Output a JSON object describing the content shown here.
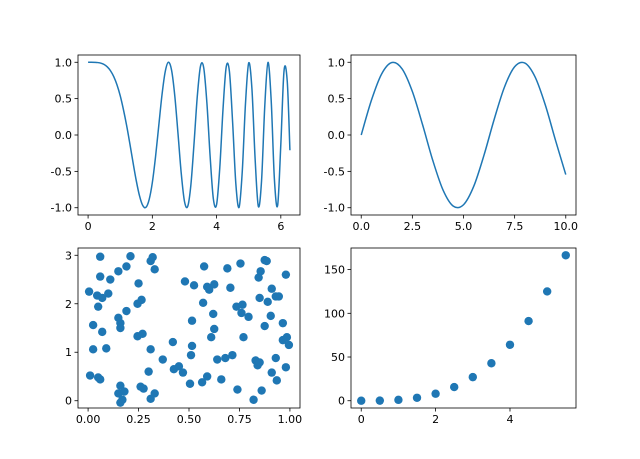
{
  "chart_data": [
    {
      "type": "line",
      "color": "#1f77b4",
      "x": [
        0,
        0.1,
        0.2,
        0.3,
        0.4,
        0.5,
        0.6,
        0.7,
        0.8,
        0.9,
        1.0,
        1.1,
        1.2,
        1.3,
        1.4,
        1.5,
        1.6,
        1.7,
        1.8,
        1.9,
        2.0,
        2.1,
        2.2,
        2.3,
        2.4,
        2.5,
        2.6,
        2.7,
        2.8,
        2.9,
        3.0,
        3.1,
        3.2,
        3.3,
        3.4,
        3.5,
        3.6,
        3.7,
        3.8,
        3.9,
        4.0,
        4.1,
        4.2,
        4.3,
        4.4,
        4.5,
        4.6,
        4.7,
        4.8,
        4.9,
        5.0,
        5.1,
        5.2,
        5.3,
        5.4,
        5.5,
        5.6,
        5.7,
        5.8,
        5.9,
        6.0,
        6.1,
        6.2,
        6.283
      ],
      "values": [
        1,
        1.0,
        0.999,
        0.996,
        0.987,
        0.969,
        0.936,
        0.882,
        0.802,
        0.689,
        0.54,
        0.35,
        0.131,
        -0.119,
        -0.38,
        -0.628,
        -0.835,
        -0.968,
        -0.995,
        -0.889,
        -0.654,
        -0.298,
        0.127,
        0.549,
        0.868,
        1.0,
        0.888,
        0.534,
        0.014,
        -0.527,
        -0.911,
        -0.983,
        -0.686,
        -0.105,
        0.533,
        0.948,
        0.923,
        0.433,
        -0.299,
        -0.879,
        -0.957,
        -0.45,
        0.353,
        0.936,
        0.873,
        0.17,
        -0.673,
        -0.995,
        -0.499,
        0.432,
        0.991,
        0.639,
        -0.33,
        -0.982,
        -0.63,
        0.394,
        0.998,
        0.477,
        -0.608,
        -0.97,
        -0.128,
        0.883,
        0.738,
        -0.21
      ],
      "xlim": [
        -0.314,
        6.597
      ],
      "ylim": [
        -1.1,
        1.1
      ],
      "xticks": [
        0,
        2,
        4,
        6
      ],
      "yticks": [
        {
          "value": -1,
          "label": "-1.0"
        },
        {
          "value": -0.5,
          "label": "-0.5"
        },
        {
          "value": 0,
          "label": "0.0"
        },
        {
          "value": 0.5,
          "label": "0.5"
        },
        {
          "value": 1,
          "label": "1.0"
        }
      ]
    },
    {
      "type": "line",
      "color": "#1f77b4",
      "x": [
        0,
        0.5,
        1,
        1.5,
        2,
        2.5,
        3,
        3.5,
        4,
        4.5,
        5,
        5.5,
        6,
        6.5,
        7,
        7.5,
        8,
        8.5,
        9,
        9.5,
        10
      ],
      "values": [
        0,
        0.479,
        0.841,
        0.997,
        0.909,
        0.598,
        0.141,
        -0.351,
        -0.757,
        -0.978,
        -0.959,
        -0.706,
        -0.279,
        0.215,
        0.657,
        0.938,
        0.989,
        0.798,
        0.412,
        -0.075,
        -0.544
      ],
      "xlim": [
        -0.5,
        10.5
      ],
      "ylim": [
        -1.1,
        1.1
      ],
      "xticks": [
        {
          "value": 0,
          "label": "0.0"
        },
        {
          "value": 2.5,
          "label": "2.5"
        },
        {
          "value": 5,
          "label": "5.0"
        },
        {
          "value": 7.5,
          "label": "7.5"
        },
        {
          "value": 10,
          "label": "10.0"
        }
      ],
      "yticks": [
        {
          "value": -1,
          "label": "-1.0"
        },
        {
          "value": -0.5,
          "label": "-0.5"
        },
        {
          "value": 0,
          "label": "0.0"
        },
        {
          "value": 0.5,
          "label": "0.5"
        },
        {
          "value": 1,
          "label": "1.0"
        }
      ]
    },
    {
      "type": "scatter",
      "color": "#1f77b4",
      "x": [
        0.005,
        0.06,
        0.025,
        0.06,
        0.05,
        0.07,
        0.11,
        0.1,
        0.15,
        0.19,
        0.21,
        0.045,
        0.07,
        0.025,
        0.09,
        0.15,
        0.16,
        0.16,
        0.19,
        0.01,
        0.05,
        0.06,
        0.15,
        0.16,
        0.17,
        0.16,
        0.18,
        0.245,
        0.265,
        0.25,
        0.31,
        0.32,
        0.33,
        0.245,
        0.27,
        0.31,
        0.26,
        0.275,
        0.3,
        0.33,
        0.31,
        0.37,
        0.42,
        0.425,
        0.45,
        0.48,
        0.47,
        0.505,
        0.51,
        0.515,
        0.525,
        0.515,
        0.57,
        0.575,
        0.565,
        0.59,
        0.6,
        0.59,
        0.625,
        0.61,
        0.625,
        0.62,
        0.66,
        0.68,
        0.69,
        0.705,
        0.64,
        0.715,
        0.74,
        0.755,
        0.735,
        0.76,
        0.765,
        0.77,
        0.795,
        0.82,
        0.83,
        0.84,
        0.85,
        0.86,
        0.845,
        0.855,
        0.875,
        0.885,
        0.85,
        0.89,
        0.875,
        0.905,
        0.93,
        0.945,
        0.91,
        0.965,
        0.965,
        0.98,
        0.995,
        0.98,
        0.935,
        0.93,
        0.91,
        0.985
      ],
      "values": [
        2.25,
        2.97,
        1.56,
        2.56,
        1.94,
        2.12,
        2.5,
        2.21,
        2.67,
        2.77,
        2.98,
        2.17,
        1.42,
        1.06,
        1.08,
        1.71,
        1.6,
        1.5,
        1.85,
        0.52,
        0.48,
        0.44,
        0.15,
        0.31,
        0.02,
        -0.04,
        0.19,
        2.0,
        2.08,
        2.42,
        2.88,
        2.96,
        2.71,
        1.33,
        1.38,
        1.06,
        0.29,
        0.25,
        0.6,
        0.15,
        0.04,
        0.85,
        1.21,
        0.65,
        0.71,
        2.46,
        0.58,
        0.35,
        0.94,
        1.13,
        2.38,
        1.65,
        2.02,
        2.77,
        0.38,
        0.5,
        2.29,
        2.35,
        2.4,
        1.31,
        1.48,
        1.79,
        0.44,
        0.88,
        2.73,
        2.33,
        0.85,
        0.94,
        0.23,
        2.83,
        1.94,
        1.81,
        1.98,
        1.31,
        1.73,
        0.02,
        0.83,
        0.73,
        0.79,
        0.21,
        2.54,
        2.67,
        2.9,
        2.88,
        2.12,
        2.04,
        1.54,
        1.75,
        2.15,
        2.15,
        2.31,
        1.6,
        1.25,
        2.6,
        1.15,
        0.69,
        0.42,
        0.88,
        0.58,
        1.31
      ],
      "xlim": [
        -0.05,
        1.05
      ],
      "ylim": [
        -0.15,
        3.15
      ],
      "xticks": [
        {
          "value": 0,
          "label": "0.00"
        },
        {
          "value": 0.25,
          "label": "0.25"
        },
        {
          "value": 0.5,
          "label": "0.50"
        },
        {
          "value": 0.75,
          "label": "0.75"
        },
        {
          "value": 1,
          "label": "1.00"
        }
      ],
      "yticks": [
        0,
        1,
        2,
        3
      ]
    },
    {
      "type": "scatter",
      "color": "#1f77b4",
      "x": [
        0,
        0.5,
        1,
        1.5,
        2,
        2.5,
        3,
        3.5,
        4,
        4.5,
        5,
        5.5
      ],
      "values": [
        0,
        0.125,
        1,
        3.375,
        8,
        15.625,
        27,
        42.875,
        64,
        91.125,
        125,
        166.375
      ],
      "xlim": [
        -0.275,
        5.775
      ],
      "ylim": [
        -8.32,
        174.7
      ],
      "xticks": [
        0,
        2,
        4
      ],
      "yticks": [
        0,
        50,
        100,
        150
      ]
    }
  ]
}
